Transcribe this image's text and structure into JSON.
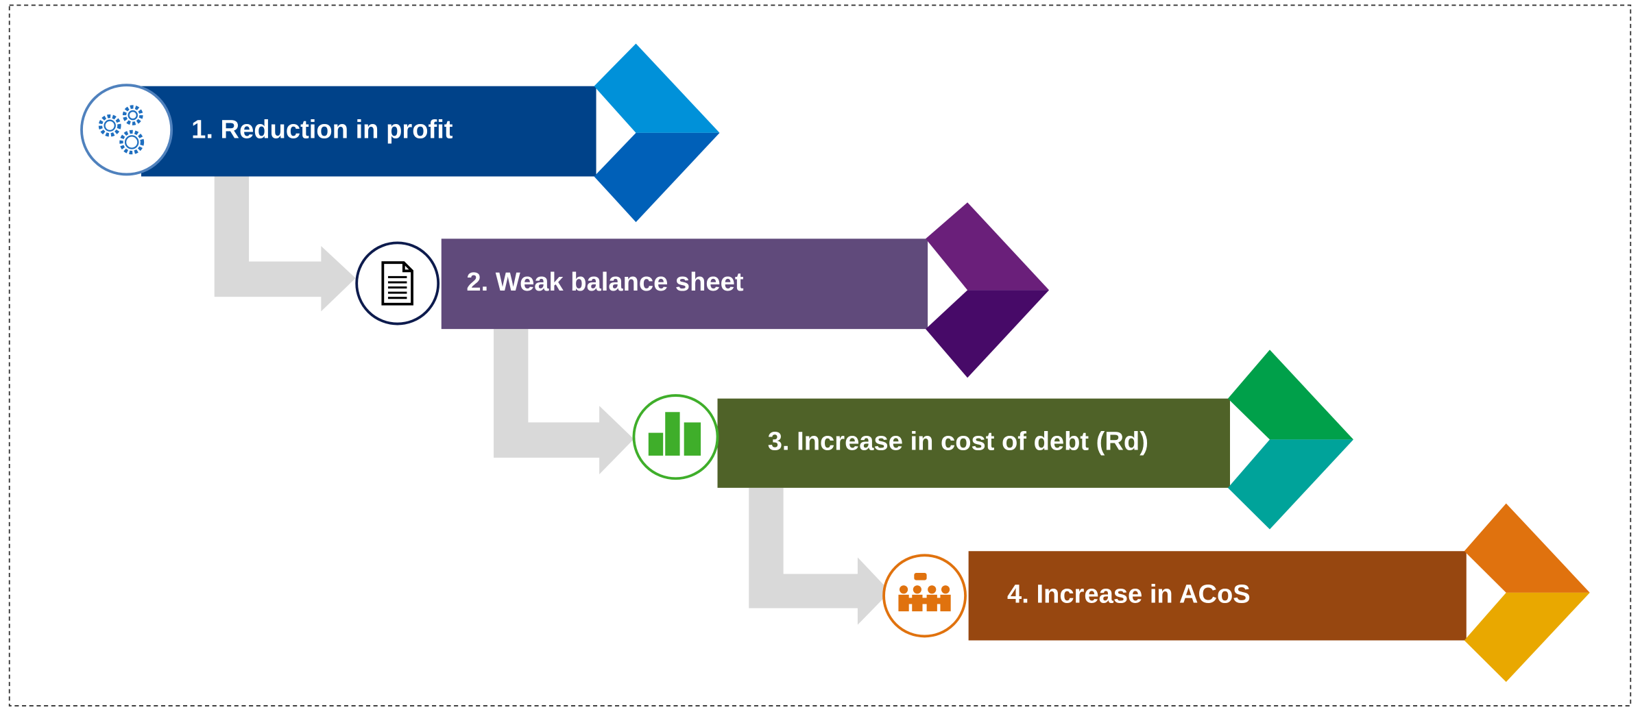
{
  "steps": [
    {
      "label": "1. Reduction in profit"
    },
    {
      "label": "2. Weak balance sheet"
    },
    {
      "label": "3. Increase in cost of debt (Rd)"
    },
    {
      "label": "4. Increase in ACoS"
    }
  ]
}
